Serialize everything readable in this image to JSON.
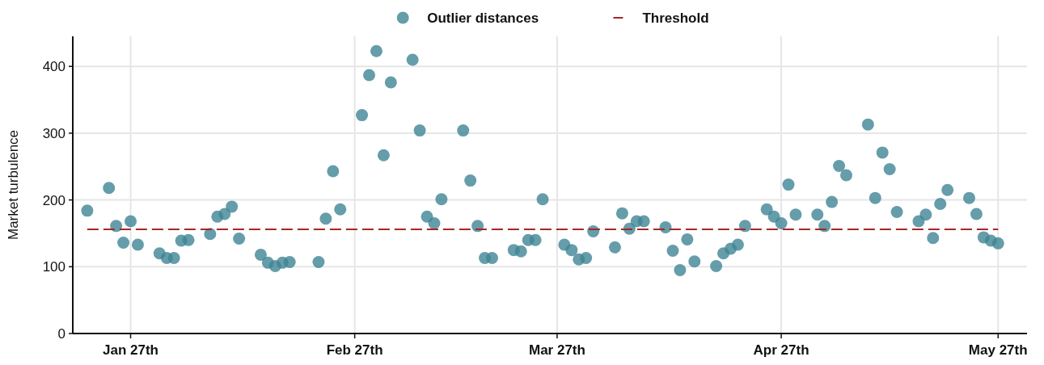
{
  "chart_data": {
    "type": "scatter",
    "ylabel": "Market turbulence",
    "legend": "top",
    "grid": true,
    "marker": "circle",
    "x": [
      "--01-21",
      "--01-24",
      "--01-25",
      "--01-26",
      "--01-27",
      "--01-28",
      "--01-31",
      "--02-01",
      "--02-02",
      "--02-03",
      "--02-04",
      "--02-07",
      "--02-08",
      "--02-09",
      "--02-10",
      "--02-11",
      "--02-14",
      "--02-15",
      "--02-16",
      "--02-17",
      "--02-18",
      "--02-22",
      "--02-23",
      "--02-24",
      "--02-25",
      "--02-28",
      "--03-01",
      "--03-02",
      "--03-03",
      "--03-04",
      "--03-07",
      "--03-08",
      "--03-09",
      "--03-10",
      "--03-11",
      "--03-14",
      "--03-15",
      "--03-16",
      "--03-17",
      "--03-18",
      "--03-21",
      "--03-22",
      "--03-23",
      "--03-24",
      "--03-25",
      "--03-28",
      "--03-29",
      "--03-30",
      "--03-31",
      "--04-01",
      "--04-04",
      "--04-05",
      "--04-06",
      "--04-07",
      "--04-08",
      "--04-11",
      "--04-12",
      "--04-13",
      "--04-14",
      "--04-15",
      "--04-18",
      "--04-19",
      "--04-20",
      "--04-21",
      "--04-22",
      "--04-25",
      "--04-26",
      "--04-27",
      "--04-28",
      "--04-29",
      "--05-02",
      "--05-03",
      "--05-04",
      "--05-05",
      "--05-06",
      "--05-09",
      "--05-10",
      "--05-11",
      "--05-12",
      "--05-13",
      "--05-16",
      "--05-17",
      "--05-18",
      "--05-19",
      "--05-20",
      "--05-23",
      "--05-24",
      "--05-25",
      "--05-26",
      "--05-27"
    ],
    "series": [
      {
        "name": "Outlier distances",
        "color": "#3f8595",
        "values": [
          184,
          218,
          161,
          136,
          168,
          133,
          120,
          113,
          113,
          139,
          140,
          149,
          175,
          179,
          190,
          142,
          118,
          106,
          101,
          106,
          107,
          107,
          172,
          243,
          186,
          327,
          387,
          423,
          267,
          376,
          410,
          304,
          175,
          165,
          201,
          304,
          229,
          161,
          113,
          113,
          125,
          123,
          140,
          140,
          201,
          133,
          125,
          111,
          113,
          153,
          129,
          180,
          157,
          168,
          168,
          159,
          124,
          95,
          141,
          108,
          101,
          120,
          127,
          133,
          161,
          186,
          175,
          165,
          223,
          178,
          178,
          161,
          197,
          251,
          237,
          313,
          203,
          271,
          246,
          182,
          168,
          178,
          143,
          194,
          215,
          203,
          179,
          144,
          139,
          135
        ]
      },
      {
        "name": "Threshold",
        "type": "line",
        "color": "#a8262a",
        "marker": "none",
        "line_style": "dashed",
        "values": [
          156,
          156,
          156,
          156,
          156,
          156,
          156,
          156,
          156,
          156,
          156,
          156,
          156,
          156,
          156,
          156,
          156,
          156,
          156,
          156,
          156,
          156,
          156,
          156,
          156,
          156,
          156,
          156,
          156,
          156,
          156,
          156,
          156,
          156,
          156,
          156,
          156,
          156,
          156,
          156,
          156,
          156,
          156,
          156,
          156,
          156,
          156,
          156,
          156,
          156,
          156,
          156,
          156,
          156,
          156,
          156,
          156,
          156,
          156,
          156,
          156,
          156,
          156,
          156,
          156,
          156,
          156,
          156,
          156,
          156,
          156,
          156,
          156,
          156,
          156,
          156,
          156,
          156,
          156,
          156,
          156,
          156,
          156,
          156,
          156,
          156,
          156,
          156,
          156,
          156
        ]
      }
    ],
    "xlim": [
      "--01-19",
      "--05-31"
    ],
    "xticks": [
      {
        "value": "--01-27",
        "label": "Jan 27th"
      },
      {
        "value": "--02-27",
        "label": "Feb 27th"
      },
      {
        "value": "--03-27",
        "label": "Mar 27th"
      },
      {
        "value": "--04-27",
        "label": "Apr 27th"
      },
      {
        "value": "--05-27",
        "label": "May 27th"
      }
    ],
    "ylim": [
      0,
      445
    ],
    "yticks": [
      0,
      100,
      200,
      300,
      400
    ]
  }
}
